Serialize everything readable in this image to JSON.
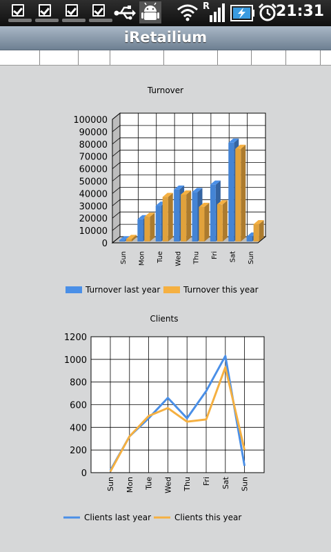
{
  "status_bar": {
    "time": "21:31",
    "signal_indicator": "R",
    "icons": [
      "notification-icon",
      "notification-icon",
      "notification-icon",
      "notification-icon",
      "usb-icon",
      "android-debug-icon",
      "wifi-icon",
      "signal-icon",
      "battery-charging-icon",
      "alarm-icon"
    ]
  },
  "app": {
    "title": "iRetailium"
  },
  "colors": {
    "last_year": "#4a8fe7",
    "this_year": "#f5b041"
  },
  "charts": [
    {
      "title": "Turnover",
      "legend": [
        "Turnover last year",
        "Turnover this year"
      ]
    },
    {
      "title": "Clients",
      "legend": [
        "Clients last year",
        "Clients this year"
      ]
    }
  ],
  "chart_data": [
    {
      "type": "bar",
      "title": "Turnover",
      "categories": [
        "Sun",
        "Mon",
        "Tue",
        "Wed",
        "Thu",
        "Fri",
        "Sat",
        "Sun"
      ],
      "series": [
        {
          "name": "Turnover last year",
          "values": [
            1000,
            18000,
            29000,
            42000,
            40000,
            46000,
            80000,
            4000
          ]
        },
        {
          "name": "Turnover this year",
          "values": [
            2000,
            20000,
            36000,
            38000,
            28000,
            30000,
            75000,
            14000
          ]
        }
      ],
      "ylim": [
        0,
        100000
      ],
      "yticks": [
        "0",
        "10000",
        "20000",
        "30000",
        "40000",
        "50000",
        "60000",
        "70000",
        "80000",
        "90000",
        "100000"
      ],
      "grid": true,
      "legend_position": "bottom"
    },
    {
      "type": "line",
      "title": "Clients",
      "categories": [
        "Sun",
        "Mon",
        "Tue",
        "Wed",
        "Thu",
        "Fri",
        "Sat",
        "Sun"
      ],
      "series": [
        {
          "name": "Clients last year",
          "values": [
            20,
            320,
            480,
            660,
            480,
            720,
            1030,
            60
          ]
        },
        {
          "name": "Clients this year",
          "values": [
            10,
            320,
            500,
            570,
            450,
            470,
            930,
            200
          ]
        }
      ],
      "ylim": [
        0,
        1200
      ],
      "yticks": [
        "0",
        "200",
        "400",
        "600",
        "800",
        "1000",
        "1200"
      ],
      "grid": true,
      "legend_position": "bottom"
    }
  ]
}
